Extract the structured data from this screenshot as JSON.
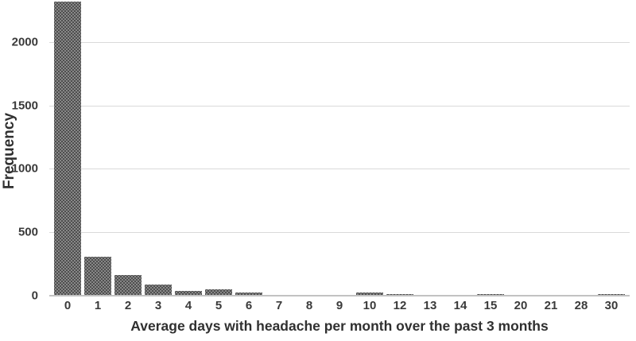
{
  "chart_data": {
    "type": "bar",
    "title": "",
    "xlabel": "Average days with headache per month over the past 3 months",
    "ylabel": "Frequency",
    "categories": [
      "0",
      "1",
      "2",
      "3",
      "4",
      "5",
      "6",
      "7",
      "8",
      "9",
      "10",
      "12",
      "13",
      "14",
      "15",
      "20",
      "21",
      "28",
      "30"
    ],
    "values": [
      2316,
      305,
      163,
      90,
      40,
      50,
      25,
      8,
      8,
      8,
      25,
      10,
      6,
      8,
      10,
      6,
      8,
      8,
      10
    ],
    "y_ticks": [
      0,
      500,
      1000,
      1500,
      2000
    ],
    "ylim": [
      0,
      2330
    ],
    "grid": true,
    "legend_position": "none",
    "bar_color": "#4e4e4e",
    "bar_pattern": "dotted-checker",
    "gridline_color": "#d9d9d9",
    "axis_line_color": "#c2c2c2",
    "text_color": "#3a3a3a"
  }
}
